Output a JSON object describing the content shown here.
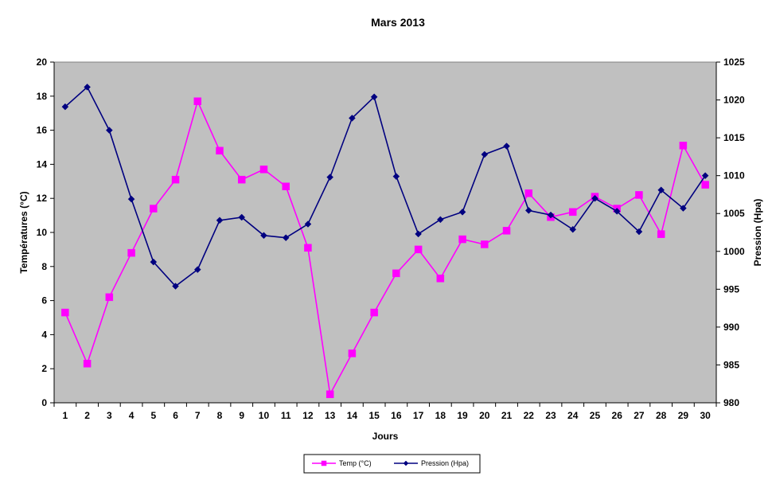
{
  "chart_data": {
    "type": "line",
    "title": "Mars 2013",
    "xlabel": "Jours",
    "ylabel_left": "Températures (°C)",
    "ylabel_right": "Pression (Hpa)",
    "ylim_left": [
      0,
      20
    ],
    "ylim_right": [
      980,
      1025
    ],
    "yticks_left": [
      "0",
      "2",
      "4",
      "6",
      "8",
      "10",
      "12",
      "14",
      "16",
      "18",
      "20"
    ],
    "yticks_right": [
      "980",
      "985",
      "990",
      "995",
      "1000",
      "1005",
      "1010",
      "1015",
      "1020",
      "1025"
    ],
    "categories": [
      "1",
      "2",
      "3",
      "4",
      "5",
      "6",
      "7",
      "8",
      "9",
      "10",
      "11",
      "12",
      "13",
      "14",
      "15",
      "16",
      "17",
      "18",
      "19",
      "20",
      "21",
      "22",
      "23",
      "24",
      "25",
      "26",
      "27",
      "28",
      "29",
      "30"
    ],
    "grid": false,
    "legend_position": "bottom",
    "plot_background": "#c0c0c0",
    "series": [
      {
        "name": "Temp (°C)",
        "axis": "left",
        "color": "#ff00ff",
        "marker": "square",
        "values": [
          5.3,
          2.3,
          6.2,
          8.8,
          11.4,
          13.1,
          17.7,
          14.8,
          13.1,
          13.7,
          12.7,
          9.1,
          0.5,
          2.9,
          5.3,
          7.6,
          9.0,
          7.3,
          9.6,
          9.3,
          10.1,
          12.3,
          10.9,
          11.2,
          12.1,
          11.4,
          12.2,
          9.9,
          15.1,
          12.8
        ]
      },
      {
        "name": "Pression (Hpa)",
        "axis": "right",
        "color": "#000080",
        "marker": "diamond",
        "values": [
          1019.1,
          1021.7,
          1016.0,
          1006.9,
          998.6,
          995.4,
          997.6,
          1004.1,
          1004.5,
          1002.1,
          1001.8,
          1003.6,
          1009.8,
          1017.6,
          1020.4,
          1009.9,
          1002.3,
          1004.2,
          1005.2,
          1012.8,
          1013.9,
          1005.4,
          1004.8,
          1002.9,
          1007.0,
          1005.3,
          1002.6,
          1008.1,
          1005.7,
          1010.0
        ]
      }
    ]
  }
}
